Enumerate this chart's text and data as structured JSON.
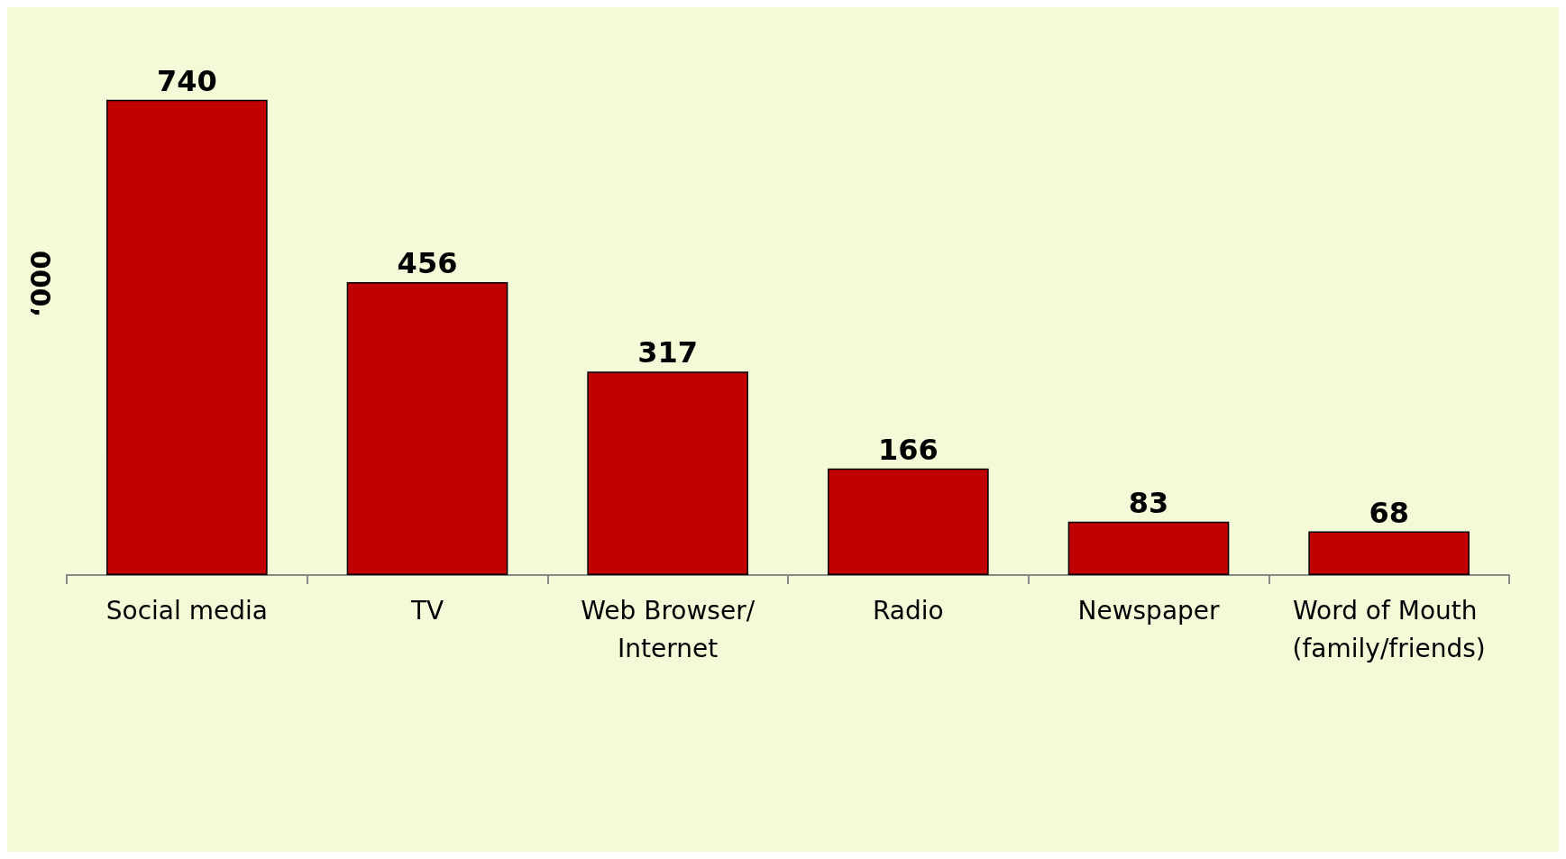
{
  "chart_data": {
    "type": "bar",
    "ylabel": "‘000",
    "categories": [
      "Social media",
      "TV",
      "Web Browser/Internet",
      "Radio",
      "Newspaper",
      "Word of Mouth (family/friends)"
    ],
    "values": [
      740,
      456,
      317,
      166,
      83,
      68
    ],
    "color": "#c00000",
    "data_labels": true
  }
}
